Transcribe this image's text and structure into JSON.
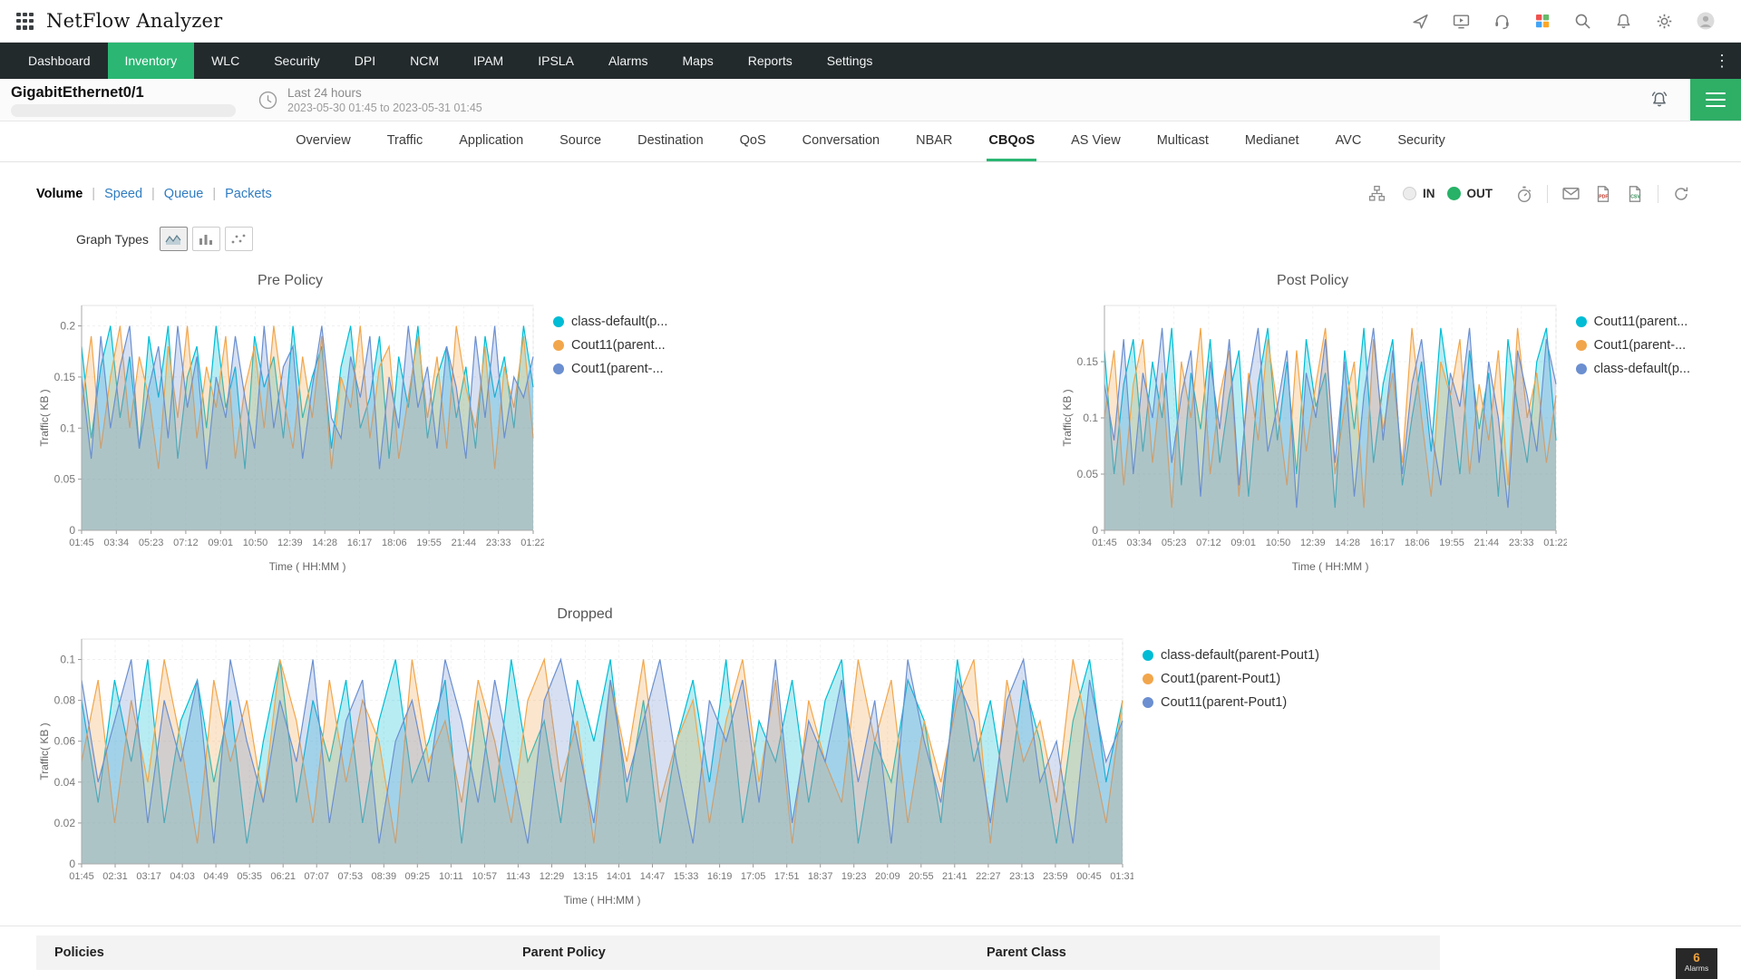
{
  "theme": {
    "accent_green": "#2bb673",
    "link_blue": "#2f7cc2",
    "series_cyan": "#00bcd4",
    "series_orange": "#f2a64b",
    "series_blue": "#6b8fd0"
  },
  "header": {
    "app_title": "NetFlow Analyzer",
    "icons": [
      "apps-grid-icon",
      "rocket-icon",
      "demo-icon",
      "support-icon",
      "products-icon",
      "search-icon",
      "notifications-icon",
      "settings-icon",
      "user-avatar-icon"
    ]
  },
  "nav": {
    "items": [
      "Dashboard",
      "Inventory",
      "WLC",
      "Security",
      "DPI",
      "NCM",
      "IPAM",
      "IPSLA",
      "Alarms",
      "Maps",
      "Reports",
      "Settings"
    ],
    "active": "Inventory"
  },
  "subheader": {
    "interface_name": "GigabitEthernet0/1",
    "time_range_label": "Last 24 hours",
    "time_range_detail": "2023-05-30 01:45 to 2023-05-31 01:45"
  },
  "tabs": {
    "items": [
      "Overview",
      "Traffic",
      "Application",
      "Source",
      "Destination",
      "QoS",
      "Conversation",
      "NBAR",
      "CBQoS",
      "AS View",
      "Multicast",
      "Medianet",
      "AVC",
      "Security"
    ],
    "active": "CBQoS"
  },
  "toolbar": {
    "views": [
      "Volume",
      "Speed",
      "Queue",
      "Packets"
    ],
    "active_view": "Volume",
    "in_label": "IN",
    "out_label": "OUT",
    "out_selected": true,
    "graph_types_label": "Graph Types"
  },
  "table": {
    "headers": [
      "Policies",
      "Parent Policy",
      "Parent Class"
    ]
  },
  "alarms_badge": {
    "count": "6",
    "label": "Alarms"
  },
  "chart_data": [
    {
      "type": "area",
      "title": "Pre Policy",
      "xlabel": "Time ( HH:MM )",
      "ylabel": "Traffic( KB )",
      "ylim": [
        0,
        0.22
      ],
      "yticks": [
        "0",
        "0.05",
        "0.1",
        "0.15",
        "0.2"
      ],
      "xticklabels": [
        "01:45",
        "03:34",
        "05:23",
        "07:12",
        "09:01",
        "10:50",
        "12:39",
        "14:28",
        "16:17",
        "18:06",
        "19:55",
        "21:44",
        "23:33",
        "01:22"
      ],
      "legend_position": "right",
      "grid": true,
      "series": [
        {
          "name": "class-default(parent-Pout1)",
          "label": "class-default(p...",
          "color": "#00bcd4",
          "values": [
            0.18,
            0.09,
            0.16,
            0.2,
            0.11,
            0.17,
            0.08,
            0.19,
            0.13,
            0.2,
            0.07,
            0.15,
            0.18,
            0.1,
            0.2,
            0.12,
            0.16,
            0.06,
            0.19,
            0.14,
            0.17,
            0.09,
            0.2,
            0.11,
            0.15,
            0.18,
            0.08,
            0.16,
            0.2,
            0.1,
            0.13,
            0.19,
            0.07,
            0.17,
            0.12,
            0.2,
            0.09,
            0.15,
            0.18,
            0.11,
            0.16,
            0.08,
            0.19,
            0.13,
            0.17,
            0.1,
            0.2,
            0.14
          ]
        },
        {
          "name": "Cout11(parent-Pout1)",
          "label": "Cout11(parent...",
          "color": "#f2a64b",
          "values": [
            0.12,
            0.19,
            0.08,
            0.15,
            0.2,
            0.1,
            0.17,
            0.13,
            0.06,
            0.18,
            0.11,
            0.2,
            0.09,
            0.16,
            0.12,
            0.19,
            0.07,
            0.14,
            0.18,
            0.1,
            0.2,
            0.13,
            0.08,
            0.17,
            0.11,
            0.19,
            0.06,
            0.15,
            0.12,
            0.2,
            0.09,
            0.16,
            0.18,
            0.07,
            0.13,
            0.19,
            0.11,
            0.17,
            0.08,
            0.2,
            0.14,
            0.1,
            0.18,
            0.06,
            0.16,
            0.12,
            0.19,
            0.09
          ]
        },
        {
          "name": "Cout1(parent-Pout1)",
          "label": "Cout1(parent-...",
          "color": "#6b8fd0",
          "values": [
            0.15,
            0.07,
            0.19,
            0.1,
            0.16,
            0.2,
            0.08,
            0.14,
            0.18,
            0.09,
            0.2,
            0.12,
            0.17,
            0.06,
            0.15,
            0.11,
            0.19,
            0.13,
            0.08,
            0.2,
            0.1,
            0.16,
            0.18,
            0.07,
            0.14,
            0.2,
            0.11,
            0.09,
            0.17,
            0.13,
            0.19,
            0.06,
            0.15,
            0.1,
            0.2,
            0.12,
            0.16,
            0.08,
            0.18,
            0.14,
            0.07,
            0.19,
            0.11,
            0.2,
            0.09,
            0.15,
            0.13,
            0.17
          ]
        }
      ]
    },
    {
      "type": "area",
      "title": "Post Policy",
      "xlabel": "Time ( HH:MM )",
      "ylabel": "Traffic( KB )",
      "ylim": [
        0,
        0.2
      ],
      "yticks": [
        "0",
        "0.05",
        "0.1",
        "0.15"
      ],
      "xticklabels": [
        "01:45",
        "03:34",
        "05:23",
        "07:12",
        "09:01",
        "10:50",
        "12:39",
        "14:28",
        "16:17",
        "18:06",
        "19:55",
        "21:44",
        "23:33",
        "01:22"
      ],
      "legend_position": "right",
      "grid": true,
      "series": [
        {
          "name": "Cout11(parent-Pout1)",
          "label": "Cout11(parent...",
          "color": "#00bcd4",
          "values": [
            0.16,
            0.05,
            0.13,
            0.17,
            0.07,
            0.15,
            0.1,
            0.18,
            0.04,
            0.14,
            0.09,
            0.17,
            0.06,
            0.12,
            0.16,
            0.03,
            0.13,
            0.18,
            0.08,
            0.15,
            0.05,
            0.17,
            0.11,
            0.14,
            0.02,
            0.16,
            0.09,
            0.18,
            0.06,
            0.13,
            0.17,
            0.04,
            0.1,
            0.15,
            0.07,
            0.18,
            0.12,
            0.05,
            0.16,
            0.09,
            0.14,
            0.03,
            0.17,
            0.11,
            0.06,
            0.15,
            0.18,
            0.08
          ]
        },
        {
          "name": "Cout1(parent-Pout1)",
          "label": "Cout1(parent-...",
          "color": "#f2a64b",
          "values": [
            0.1,
            0.16,
            0.04,
            0.13,
            0.17,
            0.06,
            0.14,
            0.02,
            0.15,
            0.1,
            0.18,
            0.05,
            0.12,
            0.16,
            0.03,
            0.14,
            0.08,
            0.17,
            0.11,
            0.04,
            0.16,
            0.07,
            0.13,
            0.18,
            0.05,
            0.11,
            0.15,
            0.02,
            0.17,
            0.09,
            0.14,
            0.06,
            0.18,
            0.1,
            0.03,
            0.15,
            0.12,
            0.17,
            0.05,
            0.13,
            0.08,
            0.16,
            0.04,
            0.18,
            0.1,
            0.14,
            0.06,
            0.12
          ]
        },
        {
          "name": "class-default(parent-Pout1)",
          "label": "class-default(p...",
          "color": "#6b8fd0",
          "values": [
            0.13,
            0.08,
            0.17,
            0.05,
            0.14,
            0.1,
            0.18,
            0.06,
            0.12,
            0.16,
            0.03,
            0.15,
            0.09,
            0.17,
            0.04,
            0.13,
            0.18,
            0.07,
            0.11,
            0.16,
            0.02,
            0.14,
            0.1,
            0.17,
            0.06,
            0.15,
            0.03,
            0.12,
            0.18,
            0.08,
            0.16,
            0.05,
            0.13,
            0.17,
            0.09,
            0.04,
            0.14,
            0.11,
            0.18,
            0.06,
            0.15,
            0.1,
            0.02,
            0.16,
            0.12,
            0.07,
            0.17,
            0.13
          ]
        }
      ]
    },
    {
      "type": "area",
      "title": "Dropped",
      "xlabel": "Time ( HH:MM )",
      "ylabel": "Traffic( KB )",
      "ylim": [
        0,
        0.11
      ],
      "yticks": [
        "0",
        "0.02",
        "0.04",
        "0.06",
        "0.08",
        "0.1"
      ],
      "xticklabels": [
        "01:45",
        "02:31",
        "03:17",
        "04:03",
        "04:49",
        "05:35",
        "06:21",
        "07:07",
        "07:53",
        "08:39",
        "09:25",
        "10:11",
        "10:57",
        "11:43",
        "12:29",
        "13:15",
        "14:01",
        "14:47",
        "15:33",
        "16:19",
        "17:05",
        "17:51",
        "18:37",
        "19:23",
        "20:09",
        "20:55",
        "21:41",
        "22:27",
        "23:13",
        "23:59",
        "00:45",
        "01:31"
      ],
      "legend_position": "right",
      "grid": true,
      "series": [
        {
          "name": "class-default(parent-Pout1)",
          "label": "class-default(parent-Pout1)",
          "color": "#00bcd4",
          "values": [
            0.08,
            0.03,
            0.09,
            0.05,
            0.1,
            0.02,
            0.07,
            0.09,
            0.04,
            0.08,
            0.01,
            0.06,
            0.1,
            0.03,
            0.08,
            0.05,
            0.09,
            0.02,
            0.07,
            0.1,
            0.04,
            0.06,
            0.09,
            0.01,
            0.08,
            0.03,
            0.1,
            0.05,
            0.07,
            0.02,
            0.09,
            0.06,
            0.1,
            0.03,
            0.08,
            0.01,
            0.06,
            0.09,
            0.04,
            0.1,
            0.02,
            0.07,
            0.05,
            0.09,
            0.03,
            0.08,
            0.1,
            0.01,
            0.06,
            0.04,
            0.09,
            0.07,
            0.02,
            0.1,
            0.05,
            0.08,
            0.03,
            0.09,
            0.06,
            0.01,
            0.07,
            0.1,
            0.04,
            0.08
          ]
        },
        {
          "name": "Cout1(parent-Pout1)",
          "label": "Cout1(parent-Pout1)",
          "color": "#f2a64b",
          "values": [
            0.05,
            0.09,
            0.02,
            0.08,
            0.04,
            0.1,
            0.06,
            0.01,
            0.09,
            0.05,
            0.08,
            0.03,
            0.1,
            0.07,
            0.02,
            0.09,
            0.04,
            0.08,
            0.06,
            0.01,
            0.1,
            0.05,
            0.07,
            0.03,
            0.09,
            0.06,
            0.02,
            0.08,
            0.1,
            0.04,
            0.07,
            0.01,
            0.09,
            0.05,
            0.1,
            0.03,
            0.06,
            0.08,
            0.02,
            0.07,
            0.1,
            0.04,
            0.09,
            0.01,
            0.08,
            0.05,
            0.03,
            0.1,
            0.06,
            0.09,
            0.02,
            0.07,
            0.04,
            0.08,
            0.1,
            0.01,
            0.09,
            0.05,
            0.07,
            0.03,
            0.1,
            0.06,
            0.02,
            0.08
          ]
        },
        {
          "name": "Cout11(parent-Pout1)",
          "label": "Cout11(parent-Pout1)",
          "color": "#6b8fd0",
          "values": [
            0.09,
            0.04,
            0.07,
            0.1,
            0.02,
            0.08,
            0.05,
            0.09,
            0.01,
            0.1,
            0.06,
            0.03,
            0.08,
            0.05,
            0.1,
            0.02,
            0.07,
            0.09,
            0.01,
            0.06,
            0.08,
            0.04,
            0.1,
            0.07,
            0.03,
            0.09,
            0.05,
            0.01,
            0.08,
            0.1,
            0.06,
            0.02,
            0.09,
            0.04,
            0.07,
            0.1,
            0.05,
            0.01,
            0.08,
            0.06,
            0.09,
            0.03,
            0.1,
            0.02,
            0.07,
            0.05,
            0.09,
            0.04,
            0.08,
            0.01,
            0.1,
            0.06,
            0.03,
            0.09,
            0.07,
            0.02,
            0.08,
            0.1,
            0.04,
            0.06,
            0.01,
            0.09,
            0.05,
            0.07
          ]
        }
      ]
    }
  ]
}
